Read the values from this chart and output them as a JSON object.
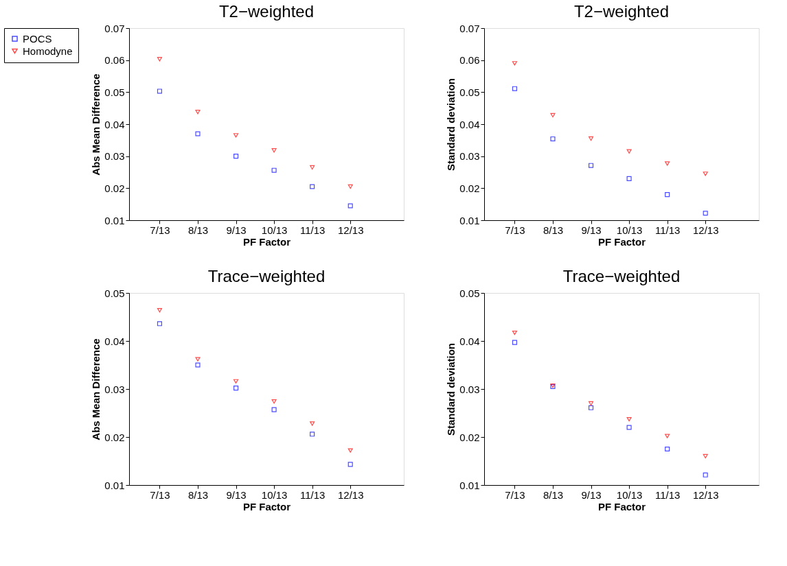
{
  "chart_data": [
    {
      "type": "scatter",
      "title": "T2−weighted",
      "xlabel": "PF Factor",
      "ylabel": "Abs Mean Difference",
      "categories": [
        "7/13",
        "8/13",
        "9/13",
        "10/13",
        "11/13",
        "12/13"
      ],
      "ylim": [
        0.01,
        0.07
      ],
      "yticks": [
        0.01,
        0.02,
        0.03,
        0.04,
        0.05,
        0.06,
        0.07
      ],
      "grid": false,
      "legend": "left",
      "series": [
        {
          "name": "POCS",
          "color": "#0000ff",
          "marker": "square",
          "values": [
            0.0503,
            0.037,
            0.03,
            0.0256,
            0.0205,
            0.0145
          ]
        },
        {
          "name": "Homodyne",
          "color": "#ff0000",
          "marker": "triangle",
          "values": [
            0.0603,
            0.0438,
            0.0365,
            0.0318,
            0.0265,
            0.0205
          ]
        }
      ]
    },
    {
      "type": "scatter",
      "title": "T2−weighted",
      "xlabel": "PF Factor",
      "ylabel": "Standard deviation",
      "categories": [
        "7/13",
        "8/13",
        "9/13",
        "10/13",
        "11/13",
        "12/13"
      ],
      "ylim": [
        0.01,
        0.07
      ],
      "yticks": [
        0.01,
        0.02,
        0.03,
        0.04,
        0.05,
        0.06,
        0.07
      ],
      "grid": false,
      "series": [
        {
          "name": "POCS",
          "color": "#0000ff",
          "marker": "square",
          "values": [
            0.0511,
            0.0354,
            0.0271,
            0.023,
            0.018,
            0.0122
          ]
        },
        {
          "name": "Homodyne",
          "color": "#ff0000",
          "marker": "triangle",
          "values": [
            0.059,
            0.0428,
            0.0355,
            0.0315,
            0.0277,
            0.0245
          ]
        }
      ]
    },
    {
      "type": "scatter",
      "title": "Trace−weighted",
      "xlabel": "PF Factor",
      "ylabel": "Abs Mean Difference",
      "categories": [
        "7/13",
        "8/13",
        "9/13",
        "10/13",
        "11/13",
        "12/13"
      ],
      "ylim": [
        0.01,
        0.05
      ],
      "yticks": [
        0.01,
        0.02,
        0.03,
        0.04,
        0.05
      ],
      "grid": false,
      "series": [
        {
          "name": "POCS",
          "color": "#0000ff",
          "marker": "square",
          "values": [
            0.0436,
            0.035,
            0.0302,
            0.0257,
            0.0206,
            0.0143
          ]
        },
        {
          "name": "Homodyne",
          "color": "#ff0000",
          "marker": "triangle",
          "values": [
            0.0464,
            0.0362,
            0.0316,
            0.0274,
            0.0228,
            0.0172
          ]
        }
      ]
    },
    {
      "type": "scatter",
      "title": "Trace−weighted",
      "xlabel": "PF Factor",
      "ylabel": "Standard deviation",
      "categories": [
        "7/13",
        "8/13",
        "9/13",
        "10/13",
        "11/13",
        "12/13"
      ],
      "ylim": [
        0.01,
        0.05
      ],
      "yticks": [
        0.01,
        0.02,
        0.03,
        0.04,
        0.05
      ],
      "grid": false,
      "series": [
        {
          "name": "POCS",
          "color": "#0000ff",
          "marker": "square",
          "values": [
            0.0397,
            0.0305,
            0.0261,
            0.022,
            0.0175,
            0.0121
          ]
        },
        {
          "name": "Homodyne",
          "color": "#ff0000",
          "marker": "triangle",
          "values": [
            0.0417,
            0.0307,
            0.027,
            0.0237,
            0.0202,
            0.016
          ]
        }
      ]
    }
  ]
}
